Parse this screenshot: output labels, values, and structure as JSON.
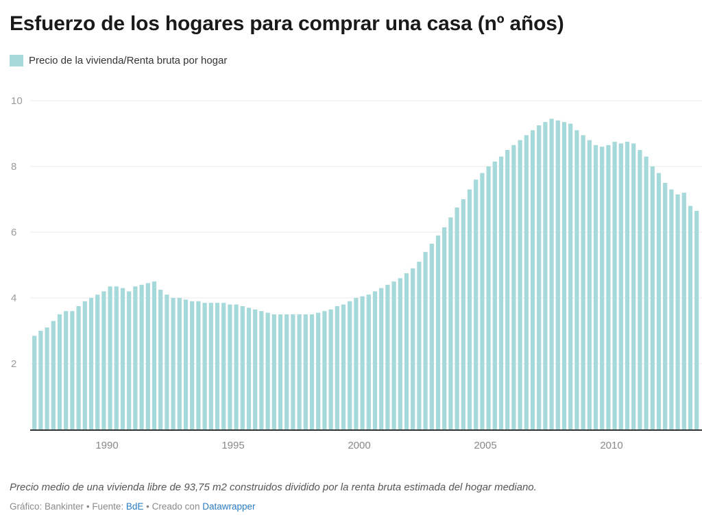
{
  "chart_data": {
    "type": "bar",
    "title": "Esfuerzo de los hogares para comprar una casa (nº años)",
    "series": [
      {
        "name": "Precio de la vivienda/Renta bruta por hogar",
        "values": [
          2.85,
          3.0,
          3.1,
          3.3,
          3.5,
          3.6,
          3.6,
          3.75,
          3.9,
          4.0,
          4.1,
          4.2,
          4.35,
          4.35,
          4.3,
          4.2,
          4.35,
          4.4,
          4.45,
          4.5,
          4.25,
          4.1,
          4.0,
          4.0,
          3.95,
          3.9,
          3.9,
          3.85,
          3.85,
          3.85,
          3.85,
          3.8,
          3.8,
          3.75,
          3.7,
          3.65,
          3.6,
          3.55,
          3.5,
          3.5,
          3.5,
          3.5,
          3.5,
          3.5,
          3.5,
          3.55,
          3.6,
          3.65,
          3.75,
          3.8,
          3.9,
          4.0,
          4.05,
          4.1,
          4.2,
          4.3,
          4.4,
          4.5,
          4.6,
          4.75,
          4.9,
          5.1,
          5.4,
          5.65,
          5.9,
          6.15,
          6.45,
          6.75,
          7.0,
          7.3,
          7.6,
          7.8,
          8.0,
          8.15,
          8.3,
          8.5,
          8.65,
          8.8,
          8.95,
          9.1,
          9.25,
          9.35,
          9.45,
          9.4,
          9.35,
          9.3,
          9.1,
          8.95,
          8.8,
          8.65,
          8.6,
          8.65,
          8.75,
          8.7,
          8.75,
          8.7,
          8.5,
          8.3,
          8.0,
          7.8,
          7.5,
          7.3,
          7.15,
          7.2,
          6.8,
          6.65
        ]
      }
    ],
    "start_year": 1987,
    "periods_per_year": 4,
    "xticks": [
      1990,
      1995,
      2000,
      2005,
      2010
    ],
    "yticks": [
      2,
      4,
      6,
      8,
      10
    ],
    "ylim": [
      0,
      10
    ],
    "grid": true,
    "legend_position": "top-left",
    "bar_color": "#a6d9d9",
    "grid_color": "#e9e9e9",
    "axis_color": "#333333"
  },
  "notes": {
    "description": "Precio medio de una vivienda libre de 93,75 m2 construidos dividido por la renta bruta estimada del hogar mediano."
  },
  "source": {
    "chart_by": "Gráfico: Bankinter",
    "separator": "•",
    "source_label": "Fuente:",
    "source_link": "BdE",
    "created_label": "Creado con",
    "created_link": "Datawrapper"
  }
}
